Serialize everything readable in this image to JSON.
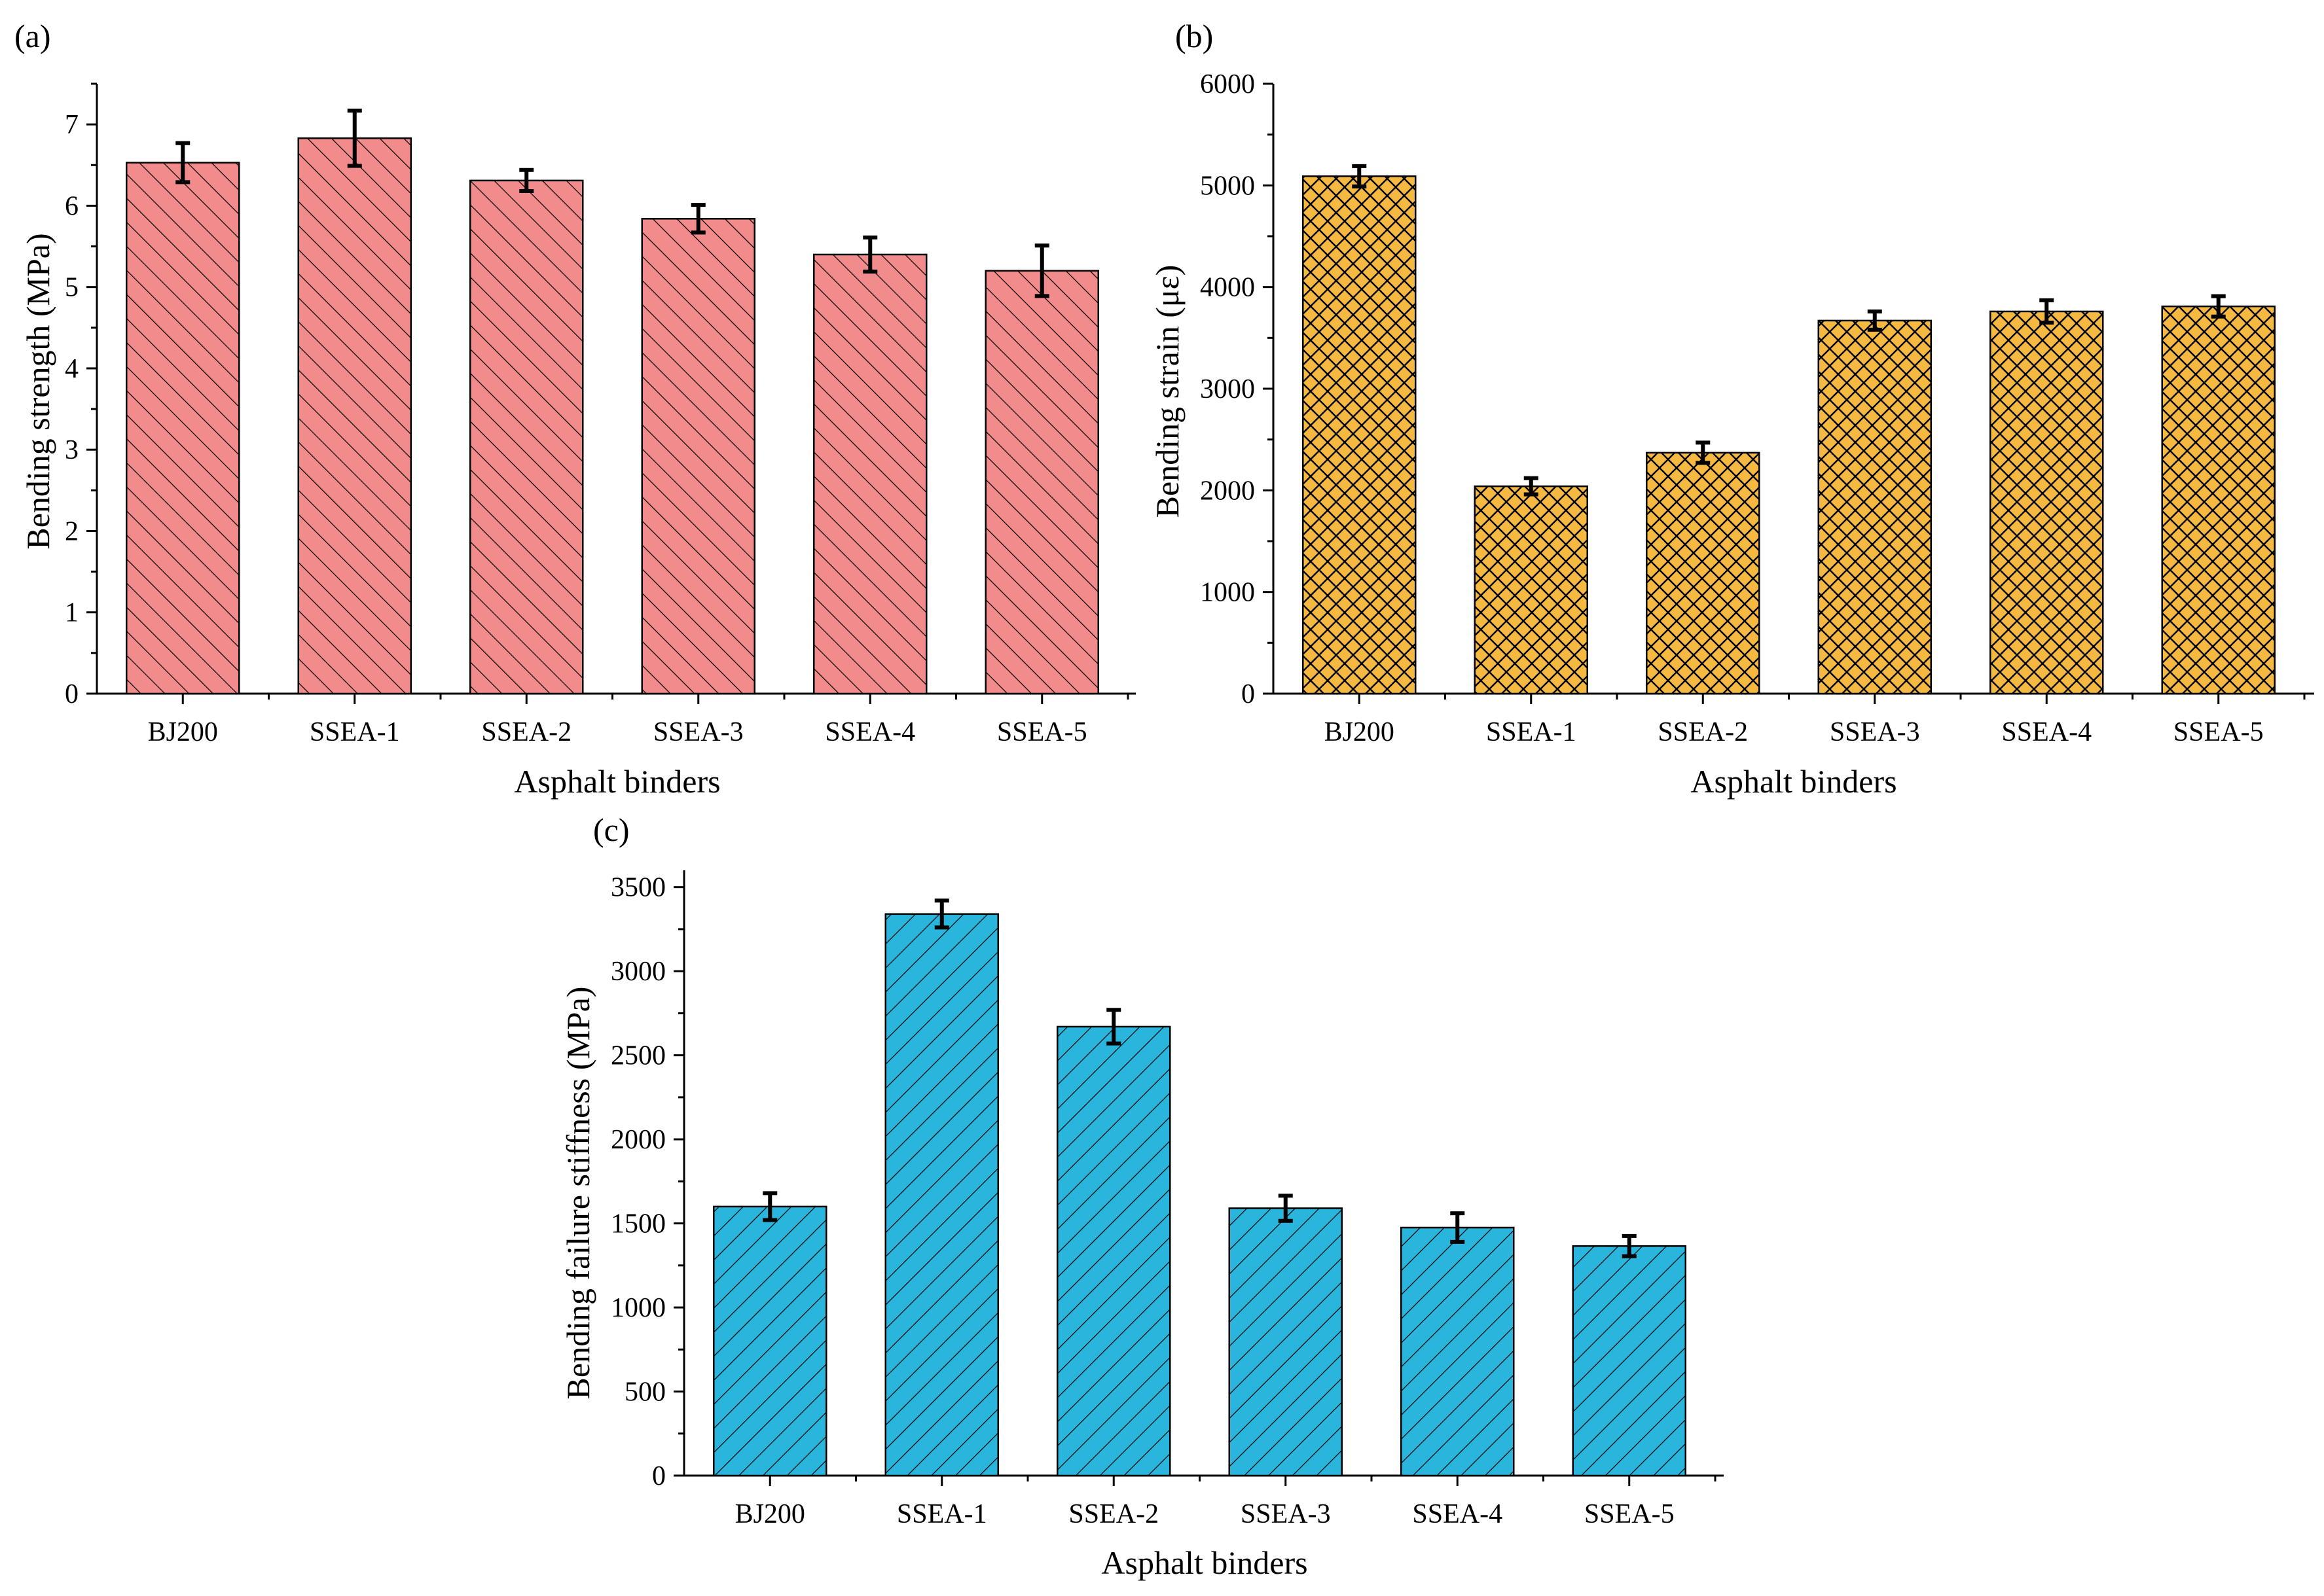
{
  "chart_data": [
    {
      "id": "a",
      "type": "bar",
      "panel_label": "(a)",
      "title": "",
      "xlabel": "Asphalt binders",
      "ylabel": "Bending strength (MPa)",
      "categories": [
        "BJ200",
        "SSEA-1",
        "SSEA-2",
        "SSEA-3",
        "SSEA-4",
        "SSEA-5"
      ],
      "values": [
        6.53,
        6.83,
        6.31,
        5.84,
        5.4,
        5.2
      ],
      "errors": [
        0.24,
        0.34,
        0.13,
        0.17,
        0.21,
        0.31
      ],
      "ylim": [
        0,
        7.5
      ],
      "yticks": [
        0,
        1,
        2,
        3,
        4,
        5,
        6,
        7
      ],
      "ytick_labels": [
        "0",
        "1",
        "2",
        "3",
        "4",
        "5",
        "6",
        "7"
      ],
      "fill_color": "#f28b8b",
      "hatch": "diagonal-up"
    },
    {
      "id": "b",
      "type": "bar",
      "panel_label": "(b)",
      "title": "",
      "xlabel": "Asphalt binders",
      "ylabel": "Bending strain (με)",
      "categories": [
        "BJ200",
        "SSEA-1",
        "SSEA-2",
        "SSEA-3",
        "SSEA-4",
        "SSEA-5"
      ],
      "values": [
        5090,
        2040,
        2370,
        3670,
        3760,
        3810
      ],
      "errors": [
        100,
        80,
        100,
        90,
        110,
        100
      ],
      "ylim": [
        0,
        6000
      ],
      "yticks": [
        0,
        1000,
        2000,
        3000,
        4000,
        5000,
        6000
      ],
      "ytick_labels": [
        "0",
        "1000",
        "2000",
        "3000",
        "4000",
        "5000",
        "6000"
      ],
      "fill_color": "#f5b942",
      "hatch": "crosshatch"
    },
    {
      "id": "c",
      "type": "bar",
      "panel_label": "(c)",
      "title": "",
      "xlabel": "Asphalt binders",
      "ylabel": "Bending failure stiffness (MPa)",
      "categories": [
        "BJ200",
        "SSEA-1",
        "SSEA-2",
        "SSEA-3",
        "SSEA-4",
        "SSEA-5"
      ],
      "values": [
        1600,
        3340,
        2670,
        1590,
        1475,
        1365
      ],
      "errors": [
        80,
        80,
        100,
        75,
        85,
        60
      ],
      "ylim": [
        0,
        3600
      ],
      "yticks": [
        0,
        500,
        1000,
        1500,
        2000,
        2500,
        3000,
        3500
      ],
      "ytick_labels": [
        "0",
        "500",
        "1000",
        "1500",
        "2000",
        "2500",
        "3000",
        "3500"
      ],
      "fill_color": "#29b5dc",
      "hatch": "diagonal-down"
    }
  ]
}
